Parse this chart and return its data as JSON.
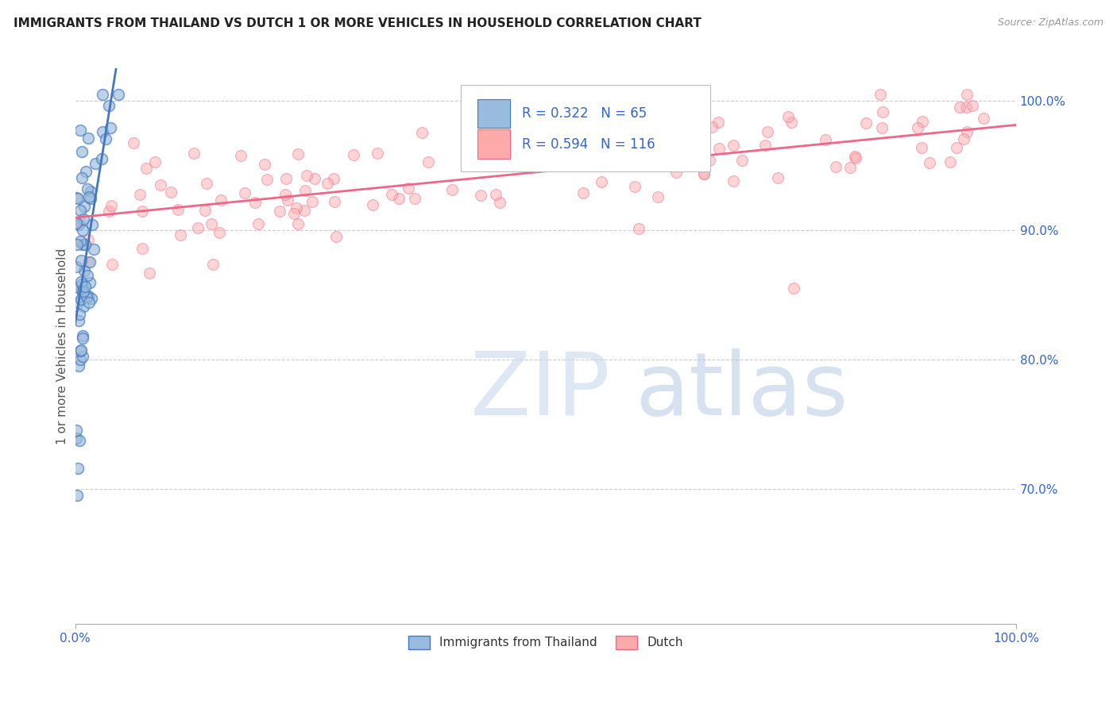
{
  "title": "IMMIGRANTS FROM THAILAND VS DUTCH 1 OR MORE VEHICLES IN HOUSEHOLD CORRELATION CHART",
  "source": "Source: ZipAtlas.com",
  "ylabel": "1 or more Vehicles in Household",
  "legend_label1": "Immigrants from Thailand",
  "legend_label2": "Dutch",
  "R1": 0.322,
  "N1": 65,
  "R2": 0.594,
  "N2": 116,
  "color_blue": "#99BBDD",
  "color_pink": "#FFAAAA",
  "color_blue_line": "#4477BB",
  "color_pink_line": "#EE6688",
  "color_text_blue": "#3366CC",
  "background_color": "#FFFFFF",
  "ytick_vals": [
    0.7,
    0.8,
    0.9,
    1.0
  ],
  "ytick_labels": [
    "70.0%",
    "80.0%",
    "90.0%",
    "100.0%"
  ],
  "ymin": 0.595,
  "ymax": 1.025,
  "xmin": 0.0,
  "xmax": 1.0
}
